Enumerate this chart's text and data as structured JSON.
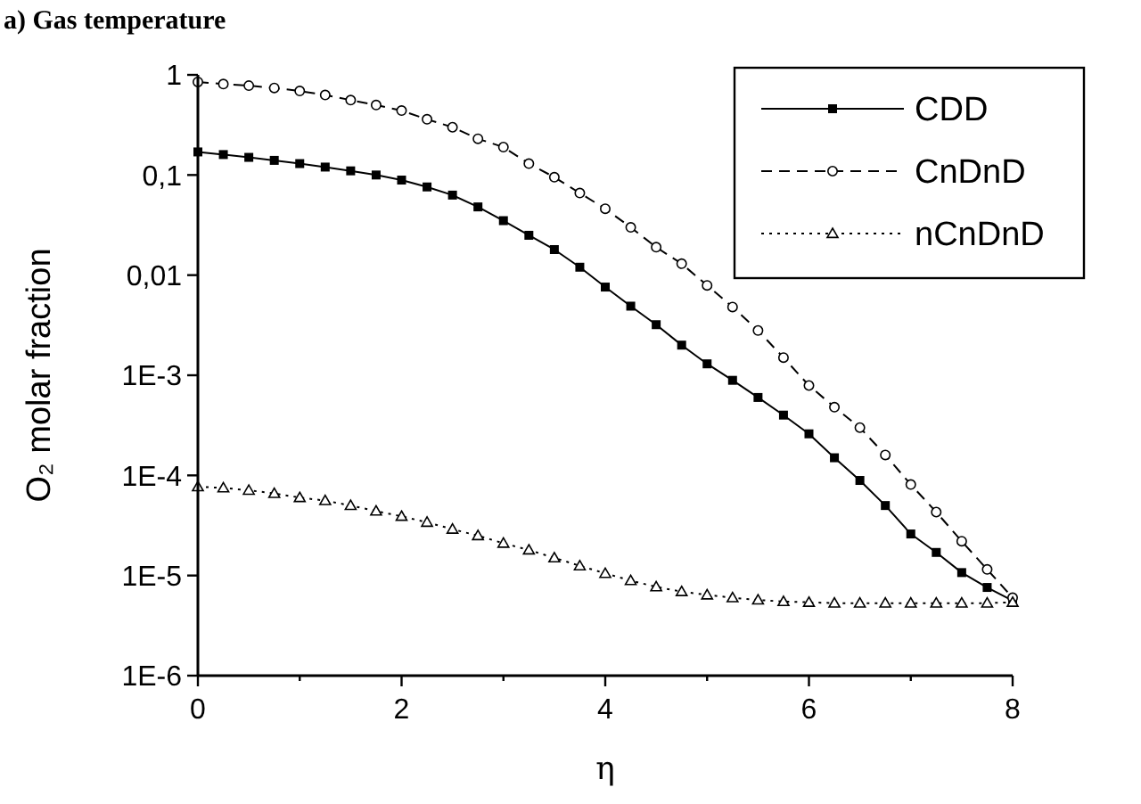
{
  "chart_data": {
    "type": "line",
    "title": "a) Gas temperature",
    "xlabel": "η",
    "ylabel": "O₂ molar fraction",
    "log": "y",
    "legend": "top right",
    "grid": false,
    "x": [
      0,
      0.25,
      0.5,
      0.75,
      1,
      1.25,
      1.5,
      1.75,
      2,
      2.25,
      2.5,
      2.75,
      3,
      3.25,
      3.5,
      3.75,
      4,
      4.25,
      4.5,
      4.75,
      5,
      5.25,
      5.5,
      5.75,
      6,
      6.25,
      6.5,
      6.75,
      7,
      7.25,
      7.5,
      7.75,
      8
    ],
    "xlim": [
      0,
      8
    ],
    "xticks": [
      0,
      {
        "value": 1,
        "label": null
      },
      2,
      {
        "value": 3,
        "label": null
      },
      4,
      {
        "value": 5,
        "label": null
      },
      6,
      {
        "value": 7,
        "label": null
      },
      8
    ],
    "ylim": [
      1e-06,
      1
    ],
    "yticks": [
      {
        "value": 1,
        "label": "1"
      },
      {
        "value": 0.1,
        "label": "0,1"
      },
      {
        "value": 0.01,
        "label": "0,01"
      },
      {
        "value": 0.001,
        "label": "1E-3"
      },
      {
        "value": 0.0001,
        "label": "1E-4"
      },
      {
        "value": 1e-05,
        "label": "1E-5"
      },
      {
        "value": 1e-06,
        "label": "1E-6"
      }
    ],
    "series": [
      {
        "name": "CDD",
        "color": "#000000",
        "marker": "square",
        "line_style": "solid",
        "values": [
          0.17,
          0.16,
          0.15,
          0.14,
          0.13,
          0.12,
          0.11,
          0.1,
          0.089,
          0.076,
          0.063,
          0.048,
          0.035,
          0.025,
          0.018,
          0.012,
          0.0076,
          0.0049,
          0.0032,
          0.002,
          0.0013,
          0.00089,
          0.0006,
          0.0004,
          0.00026,
          0.00015,
          8.9e-05,
          5e-05,
          2.6e-05,
          1.7e-05,
          1.07e-05,
          7.6e-06,
          5.6e-06
        ]
      },
      {
        "name": "CnDnD",
        "color": "#000000",
        "marker": "circle",
        "line_style": "dashed",
        "values": [
          0.85,
          0.81,
          0.78,
          0.74,
          0.69,
          0.63,
          0.56,
          0.5,
          0.44,
          0.36,
          0.3,
          0.23,
          0.19,
          0.13,
          0.095,
          0.066,
          0.046,
          0.03,
          0.019,
          0.013,
          0.0079,
          0.0048,
          0.0028,
          0.0015,
          0.00079,
          0.00048,
          0.0003,
          0.00016,
          8.1e-05,
          4.3e-05,
          2.2e-05,
          1.15e-05,
          6e-06
        ]
      },
      {
        "name": "nCnDnD",
        "color": "#000000",
        "marker": "triangle",
        "line_style": "dotted",
        "values": [
          7.7e-05,
          7.5e-05,
          7.1e-05,
          6.6e-05,
          6e-05,
          5.6e-05,
          5e-05,
          4.4e-05,
          3.9e-05,
          3.4e-05,
          2.9e-05,
          2.5e-05,
          2.1e-05,
          1.8e-05,
          1.5e-05,
          1.25e-05,
          1.05e-05,
          8.9e-06,
          7.7e-06,
          6.9e-06,
          6.4e-06,
          6e-06,
          5.7e-06,
          5.5e-06,
          5.4e-06,
          5.3e-06,
          5.3e-06,
          5.3e-06,
          5.3e-06,
          5.3e-06,
          5.3e-06,
          5.3e-06,
          5.4e-06
        ]
      }
    ]
  }
}
